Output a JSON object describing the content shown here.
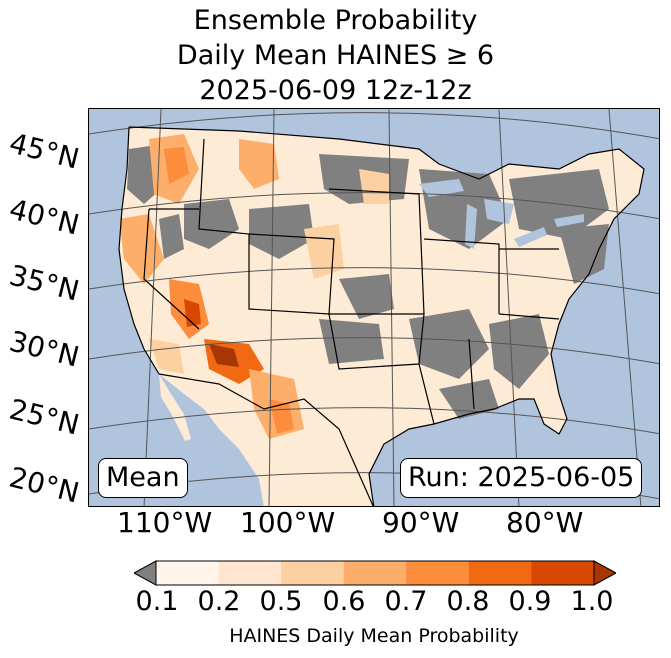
{
  "title": {
    "line1": "Ensemble Probability",
    "line2": "Daily Mean HAINES ≥ 6",
    "line3": "2025-06-09 12z-12z"
  },
  "map": {
    "lat_labels": [
      "45°N",
      "40°N",
      "35°N",
      "30°N",
      "25°N",
      "20°N"
    ],
    "lon_labels": [
      "110°W",
      "100°W",
      "90°W",
      "80°W"
    ],
    "stat_label": "Mean",
    "run_label": "Run: 2025-06-05"
  },
  "colorbar": {
    "ticks": [
      "0.1",
      "0.2",
      "0.5",
      "0.6",
      "0.7",
      "0.8",
      "0.9",
      "1.0"
    ],
    "label": "HAINES Daily Mean Probability",
    "under_color": "#808080",
    "colors": [
      "#fff5eb",
      "#fee6ce",
      "#fdd0a2",
      "#fdae6b",
      "#fd8d3c",
      "#f16913",
      "#d94801",
      "#a63603"
    ]
  },
  "colors": {
    "ocean": "#b0c4de",
    "land_low": "#808080"
  }
}
